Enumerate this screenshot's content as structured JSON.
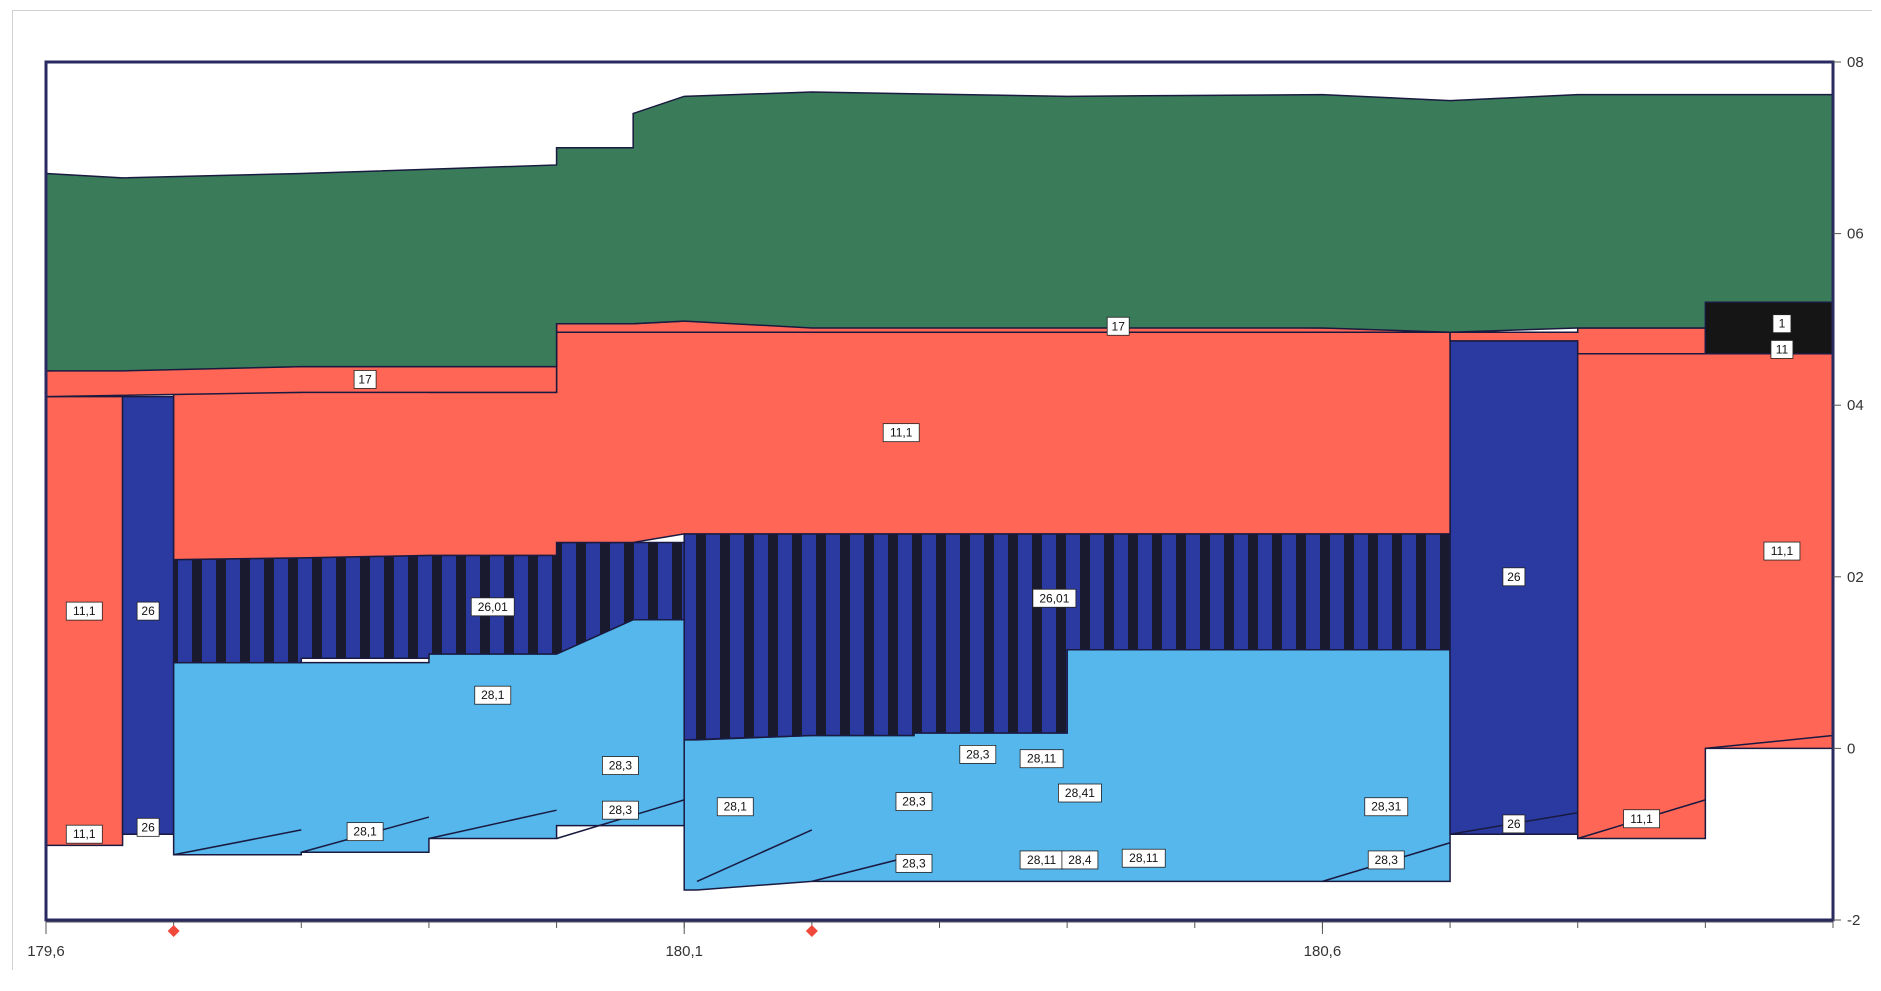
{
  "chart_data": {
    "type": "area",
    "title": "",
    "xlabel": "",
    "ylabel": "",
    "xlim": [
      179.6,
      181.0
    ],
    "ylim": [
      -2,
      8
    ],
    "x_ticks": [
      179.6,
      180.1,
      180.6
    ],
    "x_tick_labels": [
      "179,6",
      "180,1",
      "180,6"
    ],
    "y_ticks": [
      -2,
      0,
      2,
      4,
      6,
      8
    ],
    "y_tick_labels": [
      "-2",
      "0",
      "02",
      "04",
      "06",
      "08"
    ],
    "y_axis_side": "right",
    "grid": false,
    "colors": {
      "green": "#3a7b5a",
      "red": "#ff6656",
      "dark_blue": "#2a3aa0",
      "light_blue": "#55b7ec",
      "black": "#151515",
      "stripe": "#1a1a2e",
      "outline": "#1a1a40",
      "marker": "#f0483a"
    },
    "layers": [
      {
        "name": "11,1",
        "color": "red",
        "pts": [
          [
            179.6,
            4.1,
            -1.13
          ],
          [
            179.66,
            4.1,
            -1.13
          ]
        ]
      },
      {
        "name": "26",
        "color": "dark_blue",
        "pts": [
          [
            179.66,
            4.1,
            -1.0
          ],
          [
            179.7,
            4.1,
            -1.0
          ]
        ]
      },
      {
        "name": "28,1",
        "color": "light_blue",
        "pts": [
          [
            179.7,
            1.0,
            -1.24
          ],
          [
            179.8,
            1.0,
            -1.24
          ],
          [
            179.8,
            1.0,
            -1.21
          ],
          [
            179.9,
            1.0,
            -1.21
          ],
          [
            179.9,
            1.1,
            -1.05
          ],
          [
            180.0,
            1.1,
            -1.05
          ],
          [
            180.0,
            1.1,
            -0.9
          ],
          [
            180.06,
            1.5,
            -0.9
          ],
          [
            180.1,
            1.5,
            -0.9
          ]
        ]
      },
      {
        "name": "28,1",
        "color": "light_blue",
        "pts": [
          [
            180.1,
            0.1,
            -1.65
          ],
          [
            180.11,
            0.1,
            -1.65
          ],
          [
            180.2,
            0.15,
            -1.55
          ],
          [
            180.28,
            0.15,
            -1.55
          ],
          [
            180.28,
            0.18,
            -1.55
          ],
          [
            180.4,
            0.18,
            -1.55
          ],
          [
            180.4,
            1.15,
            -1.55
          ],
          [
            180.5,
            1.15,
            -1.55
          ],
          [
            180.6,
            1.15,
            -1.55
          ],
          [
            180.6,
            1.15,
            -1.55
          ],
          [
            180.7,
            1.15,
            -1.55
          ]
        ]
      },
      {
        "name": "26,01",
        "color": "dark_blue",
        "striped": true,
        "pts": [
          [
            179.7,
            2.2,
            1.0
          ],
          [
            179.8,
            2.22,
            1.0
          ],
          [
            179.8,
            2.22,
            1.05
          ],
          [
            179.9,
            2.25,
            1.05
          ],
          [
            179.9,
            2.25,
            1.1
          ],
          [
            180.0,
            2.25,
            1.1
          ],
          [
            180.0,
            2.4,
            1.1
          ],
          [
            180.06,
            2.4,
            1.5
          ],
          [
            180.1,
            2.4,
            1.5
          ]
        ]
      },
      {
        "name": "26,01",
        "color": "dark_blue",
        "striped": true,
        "pts": [
          [
            180.1,
            2.5,
            0.1
          ],
          [
            180.2,
            2.5,
            0.15
          ],
          [
            180.28,
            2.5,
            0.15
          ],
          [
            180.28,
            2.5,
            0.18
          ],
          [
            180.4,
            2.5,
            0.18
          ],
          [
            180.4,
            2.5,
            1.15
          ],
          [
            180.5,
            2.5,
            1.15
          ],
          [
            180.6,
            2.5,
            1.15
          ],
          [
            180.6,
            2.5,
            1.15
          ],
          [
            180.7,
            2.5,
            1.15
          ]
        ]
      },
      {
        "name": "26",
        "color": "dark_blue",
        "pts": [
          [
            180.7,
            4.75,
            -1.0
          ],
          [
            180.8,
            4.75,
            -1.0
          ]
        ]
      },
      {
        "name": "11,1",
        "color": "red",
        "pts": [
          [
            179.7,
            4.15,
            2.2
          ],
          [
            179.8,
            4.15,
            2.22
          ],
          [
            179.8,
            4.18,
            2.22
          ],
          [
            179.9,
            4.18,
            2.25
          ],
          [
            179.9,
            4.15,
            2.25
          ],
          [
            180.0,
            4.15,
            2.25
          ],
          [
            180.0,
            4.85,
            2.4
          ],
          [
            180.06,
            4.85,
            2.4
          ],
          [
            180.1,
            4.85,
            2.5
          ],
          [
            180.11,
            4.85,
            2.5
          ],
          [
            180.2,
            4.85,
            2.5
          ],
          [
            180.28,
            4.85,
            2.5
          ],
          [
            180.4,
            4.85,
            2.5
          ],
          [
            180.5,
            4.85,
            2.5
          ],
          [
            180.6,
            4.85,
            2.5
          ],
          [
            180.7,
            4.85,
            2.5
          ]
        ]
      },
      {
        "name": "11,1",
        "color": "red",
        "pts": [
          [
            180.8,
            4.6,
            -1.05
          ],
          [
            180.9,
            4.6,
            -1.05
          ],
          [
            180.9,
            4.6,
            0.0
          ],
          [
            181.0,
            4.6,
            0.0
          ]
        ]
      },
      {
        "name": "17",
        "color": "red",
        "pts": [
          [
            179.6,
            4.4,
            4.1
          ],
          [
            179.8,
            4.45,
            4.15
          ],
          [
            179.9,
            4.45,
            4.15
          ],
          [
            180.0,
            4.45,
            4.15
          ],
          [
            180.0,
            4.95,
            4.85
          ],
          [
            180.06,
            4.95,
            4.85
          ],
          [
            180.1,
            4.98,
            4.85
          ],
          [
            180.6,
            4.9,
            4.85
          ],
          [
            180.7,
            4.9,
            4.85
          ],
          [
            180.7,
            4.85,
            4.75
          ],
          [
            180.8,
            4.85,
            4.75
          ],
          [
            180.8,
            4.9,
            4.6
          ],
          [
            180.9,
            4.9,
            4.6
          ]
        ]
      },
      {
        "name": "green",
        "color": "green",
        "pts": [
          [
            179.6,
            6.7,
            4.4
          ],
          [
            179.66,
            6.65,
            4.4
          ],
          [
            179.8,
            6.7,
            4.45
          ],
          [
            179.9,
            6.75,
            4.45
          ],
          [
            180.0,
            6.8,
            4.45
          ],
          [
            180.0,
            7.0,
            4.95
          ],
          [
            180.06,
            7.0,
            4.95
          ],
          [
            180.06,
            7.4,
            4.95
          ],
          [
            180.1,
            7.6,
            4.98
          ],
          [
            180.2,
            7.65,
            4.9
          ],
          [
            180.4,
            7.6,
            4.9
          ],
          [
            180.6,
            7.62,
            4.9
          ],
          [
            180.7,
            7.55,
            4.85
          ],
          [
            180.8,
            7.62,
            4.9
          ],
          [
            181.0,
            7.62,
            4.9
          ]
        ]
      },
      {
        "name": "1",
        "color": "black",
        "pts": [
          [
            180.9,
            5.2,
            4.6
          ],
          [
            181.0,
            5.2,
            4.6
          ]
        ]
      }
    ],
    "labels": [
      {
        "text": "11,1",
        "x": 179.63,
        "y": 1.6
      },
      {
        "text": "26",
        "x": 179.68,
        "y": 1.6
      },
      {
        "text": "11,1",
        "x": 179.63,
        "y": -1.0
      },
      {
        "text": "26",
        "x": 179.68,
        "y": -0.92
      },
      {
        "text": "17",
        "x": 179.85,
        "y": 4.3
      },
      {
        "text": "26,01",
        "x": 179.95,
        "y": 1.65
      },
      {
        "text": "28,1",
        "x": 179.95,
        "y": 0.62
      },
      {
        "text": "28,3",
        "x": 180.05,
        "y": -0.2
      },
      {
        "text": "28,3",
        "x": 180.05,
        "y": -0.72
      },
      {
        "text": "28,1",
        "x": 179.85,
        "y": -0.97
      },
      {
        "text": "28,1",
        "x": 180.14,
        "y": -0.68
      },
      {
        "text": "11,1",
        "x": 180.27,
        "y": 3.68
      },
      {
        "text": "17",
        "x": 180.44,
        "y": 4.92
      },
      {
        "text": "26,01",
        "x": 180.39,
        "y": 1.75
      },
      {
        "text": "28,3",
        "x": 180.28,
        "y": -0.62
      },
      {
        "text": "28,3",
        "x": 180.33,
        "y": -0.07
      },
      {
        "text": "28,11",
        "x": 180.38,
        "y": -0.12
      },
      {
        "text": "28,41",
        "x": 180.41,
        "y": -0.52
      },
      {
        "text": "28,11",
        "x": 180.38,
        "y": -1.3
      },
      {
        "text": "28,4",
        "x": 180.41,
        "y": -1.3
      },
      {
        "text": "28,3",
        "x": 180.28,
        "y": -1.34
      },
      {
        "text": "28,11",
        "x": 180.46,
        "y": -1.28
      },
      {
        "text": "28,31",
        "x": 180.65,
        "y": -0.68
      },
      {
        "text": "28,3",
        "x": 180.65,
        "y": -1.3
      },
      {
        "text": "26",
        "x": 180.75,
        "y": 2.0
      },
      {
        "text": "26",
        "x": 180.75,
        "y": -0.88
      },
      {
        "text": "11,1",
        "x": 180.85,
        "y": -0.82
      },
      {
        "text": "11,1",
        "x": 180.96,
        "y": 2.3
      },
      {
        "text": "1",
        "x": 180.96,
        "y": 4.95
      },
      {
        "text": "11",
        "x": 180.96,
        "y": 4.65
      }
    ],
    "markers": [
      {
        "x": 179.7
      },
      {
        "x": 180.2
      }
    ]
  }
}
